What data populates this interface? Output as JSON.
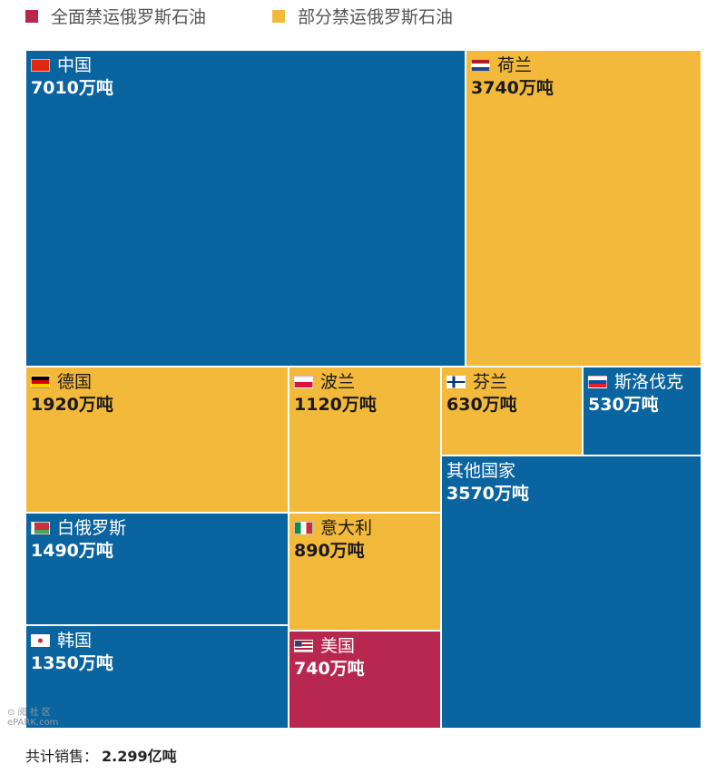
{
  "legend": {
    "items": [
      {
        "label": "全面禁运俄罗斯石油",
        "color": "#b8274f"
      },
      {
        "label": "部分禁运俄罗斯石油",
        "color": "#f2b93b"
      }
    ]
  },
  "chart_data": {
    "type": "treemap",
    "unit": "万吨",
    "items": [
      {
        "name": "中国",
        "value": 7010,
        "label": "7010万吨",
        "category": "none",
        "flag_icon": "china-flag-icon"
      },
      {
        "name": "荷兰",
        "value": 3740,
        "label": "3740万吨",
        "category": "partial",
        "flag_icon": "netherlands-flag-icon"
      },
      {
        "name": "德国",
        "value": 1920,
        "label": "1920万吨",
        "category": "partial",
        "flag_icon": "germany-flag-icon"
      },
      {
        "name": "波兰",
        "value": 1120,
        "label": "1120万吨",
        "category": "partial",
        "flag_icon": "poland-flag-icon"
      },
      {
        "name": "芬兰",
        "value": 630,
        "label": "630万吨",
        "category": "partial",
        "flag_icon": "finland-flag-icon"
      },
      {
        "name": "斯洛伐克",
        "value": 530,
        "label": "530万吨",
        "category": "none",
        "flag_icon": "slovakia-flag-icon"
      },
      {
        "name": "白俄罗斯",
        "value": 1490,
        "label": "1490万吨",
        "category": "none",
        "flag_icon": "belarus-flag-icon"
      },
      {
        "name": "意大利",
        "value": 890,
        "label": "890万吨",
        "category": "partial",
        "flag_icon": "italy-flag-icon"
      },
      {
        "name": "其他国家",
        "value": 3570,
        "label": "3570万吨",
        "category": "none",
        "flag_icon": ""
      },
      {
        "name": "韩国",
        "value": 1350,
        "label": "1350万吨",
        "category": "none",
        "flag_icon": "korea-flag-icon"
      },
      {
        "name": "美国",
        "value": 740,
        "label": "740万吨",
        "category": "full",
        "flag_icon": "usa-flag-icon"
      }
    ],
    "colors": {
      "none": "#0a64a0",
      "partial": "#f2b93b",
      "full": "#b8274f"
    }
  },
  "footer": {
    "label": "共计销售：",
    "value": "2.299亿吨"
  },
  "watermark": {
    "line1": "⊙ 阅 社 区",
    "line2": "ePARK.com"
  }
}
